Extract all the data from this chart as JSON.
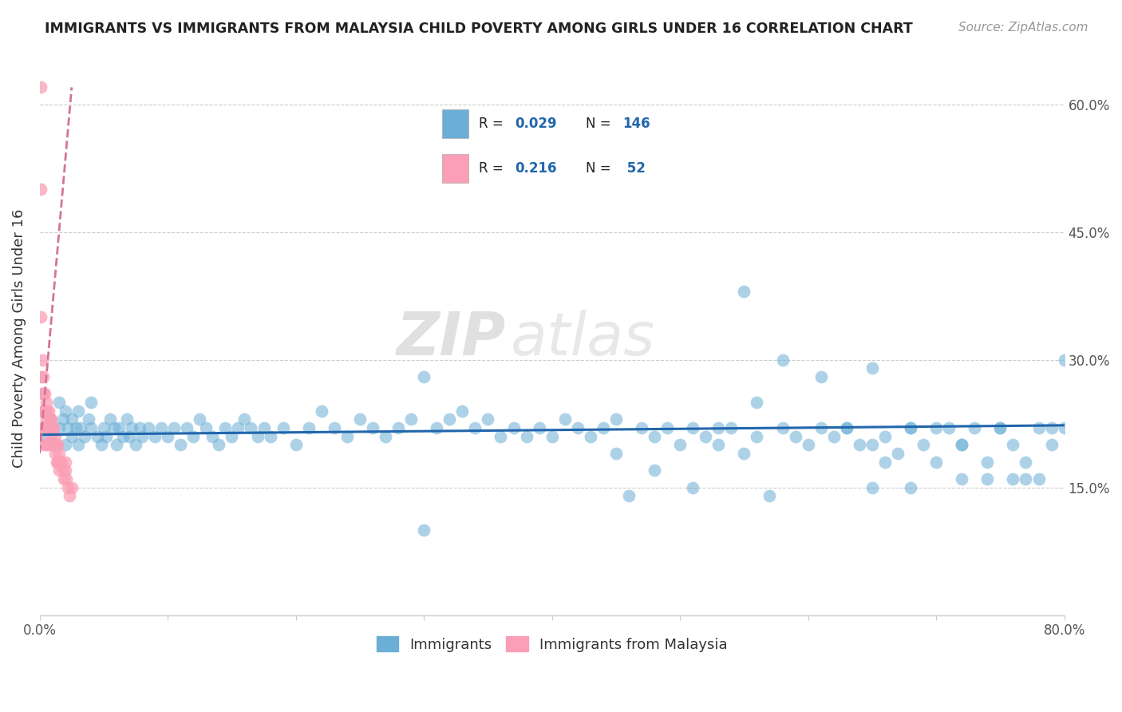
{
  "title": "IMMIGRANTS VS IMMIGRANTS FROM MALAYSIA CHILD POVERTY AMONG GIRLS UNDER 16 CORRELATION CHART",
  "source": "Source: ZipAtlas.com",
  "ylabel": "Child Poverty Among Girls Under 16",
  "x_min": 0.0,
  "x_max": 0.8,
  "y_min": 0.0,
  "y_max": 0.65,
  "blue_color": "#6baed6",
  "pink_color": "#fa9fb5",
  "blue_line_color": "#2166ac",
  "pink_line_color": "#d4739a",
  "watermark_zip": "ZIP",
  "watermark_atlas": "atlas",
  "blue_scatter_x": [
    0.005,
    0.008,
    0.01,
    0.012,
    0.015,
    0.015,
    0.018,
    0.02,
    0.02,
    0.022,
    0.025,
    0.025,
    0.028,
    0.03,
    0.03,
    0.032,
    0.035,
    0.038,
    0.04,
    0.04,
    0.045,
    0.048,
    0.05,
    0.052,
    0.055,
    0.058,
    0.06,
    0.062,
    0.065,
    0.068,
    0.07,
    0.072,
    0.075,
    0.078,
    0.08,
    0.085,
    0.09,
    0.095,
    0.1,
    0.105,
    0.11,
    0.115,
    0.12,
    0.125,
    0.13,
    0.135,
    0.14,
    0.145,
    0.15,
    0.155,
    0.16,
    0.165,
    0.17,
    0.175,
    0.18,
    0.19,
    0.2,
    0.21,
    0.22,
    0.23,
    0.24,
    0.25,
    0.26,
    0.27,
    0.28,
    0.29,
    0.3,
    0.31,
    0.32,
    0.33,
    0.34,
    0.35,
    0.36,
    0.37,
    0.38,
    0.39,
    0.4,
    0.41,
    0.42,
    0.43,
    0.44,
    0.45,
    0.46,
    0.47,
    0.48,
    0.49,
    0.5,
    0.51,
    0.52,
    0.53,
    0.54,
    0.55,
    0.56,
    0.57,
    0.58,
    0.59,
    0.6,
    0.61,
    0.62,
    0.63,
    0.64,
    0.65,
    0.66,
    0.67,
    0.68,
    0.69,
    0.7,
    0.71,
    0.72,
    0.73,
    0.74,
    0.75,
    0.76,
    0.77,
    0.78,
    0.79,
    0.8,
    0.55,
    0.58,
    0.61,
    0.63,
    0.65,
    0.66,
    0.68,
    0.7,
    0.72,
    0.74,
    0.76,
    0.78,
    0.8,
    0.65,
    0.68,
    0.72,
    0.75,
    0.77,
    0.79,
    0.45,
    0.48,
    0.51,
    0.53,
    0.56,
    0.3,
    0.33
  ],
  "blue_scatter_y": [
    0.21,
    0.23,
    0.22,
    0.2,
    0.22,
    0.25,
    0.23,
    0.2,
    0.24,
    0.22,
    0.21,
    0.23,
    0.22,
    0.2,
    0.24,
    0.22,
    0.21,
    0.23,
    0.22,
    0.25,
    0.21,
    0.2,
    0.22,
    0.21,
    0.23,
    0.22,
    0.2,
    0.22,
    0.21,
    0.23,
    0.21,
    0.22,
    0.2,
    0.22,
    0.21,
    0.22,
    0.21,
    0.22,
    0.21,
    0.22,
    0.2,
    0.22,
    0.21,
    0.23,
    0.22,
    0.21,
    0.2,
    0.22,
    0.21,
    0.22,
    0.23,
    0.22,
    0.21,
    0.22,
    0.21,
    0.22,
    0.2,
    0.22,
    0.24,
    0.22,
    0.21,
    0.23,
    0.22,
    0.21,
    0.22,
    0.23,
    0.1,
    0.22,
    0.23,
    0.24,
    0.22,
    0.23,
    0.21,
    0.22,
    0.21,
    0.22,
    0.21,
    0.23,
    0.22,
    0.21,
    0.22,
    0.23,
    0.14,
    0.22,
    0.21,
    0.22,
    0.2,
    0.22,
    0.21,
    0.2,
    0.22,
    0.19,
    0.21,
    0.14,
    0.22,
    0.21,
    0.2,
    0.22,
    0.21,
    0.22,
    0.2,
    0.15,
    0.21,
    0.19,
    0.22,
    0.2,
    0.18,
    0.22,
    0.16,
    0.22,
    0.16,
    0.22,
    0.2,
    0.18,
    0.16,
    0.2,
    0.22,
    0.38,
    0.3,
    0.28,
    0.22,
    0.2,
    0.18,
    0.15,
    0.22,
    0.2,
    0.18,
    0.16,
    0.22,
    0.3,
    0.29,
    0.22,
    0.2,
    0.22,
    0.16,
    0.22,
    0.19,
    0.17,
    0.15,
    0.22,
    0.25,
    0.28
  ],
  "pink_scatter_x": [
    0.001,
    0.001,
    0.001,
    0.001,
    0.002,
    0.002,
    0.002,
    0.002,
    0.003,
    0.003,
    0.003,
    0.003,
    0.003,
    0.004,
    0.004,
    0.004,
    0.005,
    0.005,
    0.005,
    0.005,
    0.006,
    0.006,
    0.006,
    0.007,
    0.007,
    0.008,
    0.008,
    0.008,
    0.009,
    0.009,
    0.01,
    0.01,
    0.011,
    0.011,
    0.012,
    0.012,
    0.013,
    0.013,
    0.014,
    0.014,
    0.015,
    0.015,
    0.016,
    0.017,
    0.018,
    0.019,
    0.02,
    0.02,
    0.021,
    0.022,
    0.023,
    0.025
  ],
  "pink_scatter_y": [
    0.62,
    0.5,
    0.35,
    0.28,
    0.3,
    0.26,
    0.24,
    0.22,
    0.28,
    0.26,
    0.24,
    0.22,
    0.2,
    0.26,
    0.24,
    0.22,
    0.25,
    0.23,
    0.22,
    0.2,
    0.24,
    0.22,
    0.2,
    0.24,
    0.22,
    0.23,
    0.22,
    0.2,
    0.23,
    0.21,
    0.22,
    0.2,
    0.22,
    0.2,
    0.21,
    0.19,
    0.2,
    0.18,
    0.2,
    0.18,
    0.19,
    0.17,
    0.18,
    0.18,
    0.17,
    0.16,
    0.18,
    0.17,
    0.16,
    0.15,
    0.14,
    0.15
  ],
  "blue_trend_x": [
    0.0,
    0.8
  ],
  "blue_trend_y": [
    0.212,
    0.223
  ],
  "pink_trend_x": [
    0.0,
    0.025
  ],
  "pink_trend_y": [
    0.19,
    0.62
  ]
}
